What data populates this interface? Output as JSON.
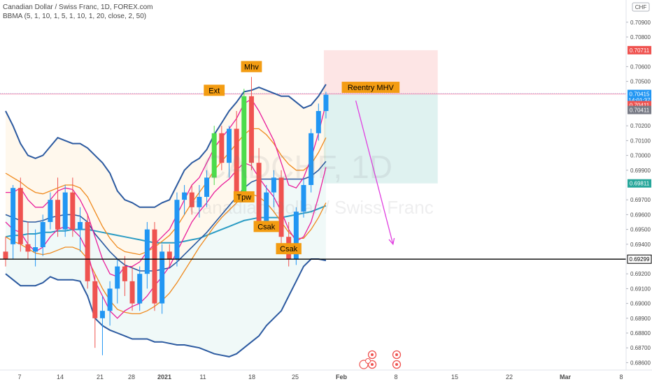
{
  "header": {
    "title": "Canadian Dollar / Swiss Franc, 1D, FOREX.com",
    "indicator": "BBMA (5, 1, 10, 1, 5, 1, 10, 1, 20, close, 2, 50)"
  },
  "watermark": {
    "symbol": "CADCHF, 1D",
    "name": "Canadian Dollar / Swiss Franc"
  },
  "currency_badge": "CHF",
  "colors": {
    "up": "#2196f3",
    "down": "#ef5350",
    "extreme": "#4cdc4c",
    "bb_outer": "#2c5aa0",
    "ma5": "#e91e9b",
    "ma10": "#ef8a1e",
    "ma20": "#2b9cc4",
    "label_bg": "#f39c12",
    "arrow": "#e040e0",
    "price_current": "#2196f3",
    "price_red": "#ef5350",
    "price_gray": "#787b86",
    "price_teal": "#26a69a"
  },
  "chart_data": {
    "type": "candlestick",
    "x_labels": [
      "7",
      "14",
      "21",
      "28",
      "2021",
      "11",
      "18",
      "25",
      "Feb",
      "8",
      "15",
      "22",
      "Mar",
      "8"
    ],
    "y_ticks": [
      "0.70900",
      "0.70800",
      "0.70600",
      "0.70500",
      "0.70200",
      "0.70100",
      "0.70000",
      "0.69900",
      "0.69700",
      "0.69600",
      "0.69500",
      "0.69400",
      "0.69200",
      "0.69100",
      "0.69000",
      "0.68900",
      "0.68800",
      "0.68700",
      "0.68600"
    ],
    "ylim": [
      0.6855,
      0.7105
    ],
    "candles": [
      {
        "o": 0.6935,
        "h": 0.6945,
        "l": 0.6925,
        "c": 0.693
      },
      {
        "o": 0.694,
        "h": 0.698,
        "l": 0.693,
        "c": 0.6978
      },
      {
        "o": 0.6978,
        "h": 0.6985,
        "l": 0.6935,
        "c": 0.694
      },
      {
        "o": 0.694,
        "h": 0.6955,
        "l": 0.693,
        "c": 0.6935
      },
      {
        "o": 0.6935,
        "h": 0.695,
        "l": 0.6925,
        "c": 0.6938
      },
      {
        "o": 0.6938,
        "h": 0.696,
        "l": 0.6932,
        "c": 0.6955
      },
      {
        "o": 0.6955,
        "h": 0.6975,
        "l": 0.695,
        "c": 0.697
      },
      {
        "o": 0.697,
        "h": 0.6985,
        "l": 0.6945,
        "c": 0.695
      },
      {
        "o": 0.695,
        "h": 0.698,
        "l": 0.6945,
        "c": 0.6975
      },
      {
        "o": 0.6975,
        "h": 0.6985,
        "l": 0.6945,
        "c": 0.695
      },
      {
        "o": 0.695,
        "h": 0.6965,
        "l": 0.6935,
        "c": 0.6955
      },
      {
        "o": 0.6955,
        "h": 0.696,
        "l": 0.691,
        "c": 0.6915
      },
      {
        "o": 0.6915,
        "h": 0.692,
        "l": 0.687,
        "c": 0.689
      },
      {
        "o": 0.689,
        "h": 0.6905,
        "l": 0.6865,
        "c": 0.6895
      },
      {
        "o": 0.6895,
        "h": 0.6915,
        "l": 0.6885,
        "c": 0.691
      },
      {
        "o": 0.691,
        "h": 0.693,
        "l": 0.69,
        "c": 0.6925
      },
      {
        "o": 0.6925,
        "h": 0.6932,
        "l": 0.6905,
        "c": 0.6915
      },
      {
        "o": 0.6915,
        "h": 0.6925,
        "l": 0.6895,
        "c": 0.69
      },
      {
        "o": 0.69,
        "h": 0.6925,
        "l": 0.6895,
        "c": 0.692
      },
      {
        "o": 0.692,
        "h": 0.6955,
        "l": 0.691,
        "c": 0.695
      },
      {
        "o": 0.695,
        "h": 0.6955,
        "l": 0.6895,
        "c": 0.69
      },
      {
        "o": 0.69,
        "h": 0.694,
        "l": 0.6893,
        "c": 0.6935
      },
      {
        "o": 0.6935,
        "h": 0.694,
        "l": 0.6925,
        "c": 0.693
      },
      {
        "o": 0.693,
        "h": 0.6975,
        "l": 0.6925,
        "c": 0.697
      },
      {
        "o": 0.697,
        "h": 0.698,
        "l": 0.696,
        "c": 0.6975
      },
      {
        "o": 0.6975,
        "h": 0.698,
        "l": 0.696,
        "c": 0.6965
      },
      {
        "o": 0.6965,
        "h": 0.698,
        "l": 0.6958,
        "c": 0.6972
      },
      {
        "o": 0.6972,
        "h": 0.699,
        "l": 0.6965,
        "c": 0.6985
      },
      {
        "o": 0.6985,
        "h": 0.702,
        "l": 0.698,
        "c": 0.7015,
        "ext": true
      },
      {
        "o": 0.7015,
        "h": 0.702,
        "l": 0.699,
        "c": 0.6995
      },
      {
        "o": 0.6995,
        "h": 0.702,
        "l": 0.6985,
        "c": 0.7018
      },
      {
        "o": 0.7018,
        "h": 0.703,
        "l": 0.697,
        "c": 0.6975
      },
      {
        "o": 0.6975,
        "h": 0.7045,
        "l": 0.697,
        "c": 0.704,
        "ext": true
      },
      {
        "o": 0.704,
        "h": 0.7053,
        "l": 0.699,
        "c": 0.6995
      },
      {
        "o": 0.6995,
        "h": 0.7005,
        "l": 0.695,
        "c": 0.6955
      },
      {
        "o": 0.6955,
        "h": 0.698,
        "l": 0.6952,
        "c": 0.6975
      },
      {
        "o": 0.6975,
        "h": 0.699,
        "l": 0.6965,
        "c": 0.6985
      },
      {
        "o": 0.6985,
        "h": 0.699,
        "l": 0.694,
        "c": 0.6945
      },
      {
        "o": 0.6945,
        "h": 0.6955,
        "l": 0.6925,
        "c": 0.693
      },
      {
        "o": 0.693,
        "h": 0.6965,
        "l": 0.6926,
        "c": 0.6962
      },
      {
        "o": 0.6962,
        "h": 0.6985,
        "l": 0.6958,
        "c": 0.698
      },
      {
        "o": 0.698,
        "h": 0.7018,
        "l": 0.6975,
        "c": 0.7015
      },
      {
        "o": 0.7015,
        "h": 0.7035,
        "l": 0.701,
        "c": 0.703
      },
      {
        "o": 0.703,
        "h": 0.7043,
        "l": 0.7025,
        "c": 0.7041
      }
    ],
    "bands": {
      "bb_upper": [
        0.703,
        0.702,
        0.7008,
        0.7,
        0.6998,
        0.7,
        0.7006,
        0.7012,
        0.701,
        0.7008,
        0.7008,
        0.7005,
        0.7,
        0.6995,
        0.6988,
        0.6976,
        0.697,
        0.6968,
        0.6965,
        0.6965,
        0.6965,
        0.6968,
        0.697,
        0.698,
        0.699,
        0.6995,
        0.6998,
        0.7004,
        0.7014,
        0.7022,
        0.703,
        0.7036,
        0.7043,
        0.7044,
        0.7046,
        0.7044,
        0.7042,
        0.704,
        0.704,
        0.7036,
        0.7032,
        0.7034,
        0.704,
        0.7048
      ],
      "bb_lower": [
        0.692,
        0.6916,
        0.6912,
        0.6912,
        0.6912,
        0.6914,
        0.6918,
        0.6916,
        0.6916,
        0.6916,
        0.6915,
        0.6905,
        0.689,
        0.6885,
        0.6882,
        0.688,
        0.6878,
        0.6876,
        0.6876,
        0.6876,
        0.6874,
        0.6874,
        0.6873,
        0.6872,
        0.6872,
        0.6871,
        0.687,
        0.6868,
        0.6866,
        0.6865,
        0.6864,
        0.6866,
        0.687,
        0.6874,
        0.6878,
        0.6885,
        0.689,
        0.6895,
        0.6905,
        0.6915,
        0.6925,
        0.693,
        0.693,
        0.6929
      ],
      "ma5_high": [
        0.6975,
        0.6975,
        0.6978,
        0.697,
        0.6965,
        0.6965,
        0.697,
        0.6976,
        0.6978,
        0.6977,
        0.697,
        0.696,
        0.6945,
        0.693,
        0.692,
        0.6918,
        0.6925,
        0.6925,
        0.6928,
        0.6935,
        0.694,
        0.6945,
        0.695,
        0.696,
        0.697,
        0.698,
        0.6985,
        0.6995,
        0.7005,
        0.7012,
        0.7018,
        0.7025,
        0.7035,
        0.7038,
        0.703,
        0.702,
        0.701,
        0.6995,
        0.698,
        0.6978,
        0.6985,
        0.6998,
        0.7015,
        0.7035
      ],
      "ma5_low": [
        0.6955,
        0.695,
        0.6948,
        0.694,
        0.6935,
        0.6938,
        0.6945,
        0.695,
        0.6952,
        0.695,
        0.6945,
        0.6935,
        0.6915,
        0.6905,
        0.6895,
        0.689,
        0.6895,
        0.6898,
        0.69,
        0.6905,
        0.6912,
        0.6918,
        0.6925,
        0.6935,
        0.6945,
        0.6955,
        0.6962,
        0.6968,
        0.6975,
        0.698,
        0.6984,
        0.699,
        0.6995,
        0.6993,
        0.6985,
        0.6978,
        0.6972,
        0.6962,
        0.695,
        0.6942,
        0.6945,
        0.6955,
        0.6972,
        0.6992
      ],
      "ma10_high": [
        0.6988,
        0.6985,
        0.6982,
        0.6978,
        0.6975,
        0.6974,
        0.6976,
        0.6978,
        0.698,
        0.698,
        0.6978,
        0.6972,
        0.6962,
        0.6952,
        0.6944,
        0.6938,
        0.6935,
        0.6934,
        0.6933,
        0.6935,
        0.6938,
        0.6942,
        0.6946,
        0.6952,
        0.696,
        0.6968,
        0.6975,
        0.6982,
        0.699,
        0.6996,
        0.7002,
        0.7008,
        0.7014,
        0.7018,
        0.7018,
        0.7014,
        0.7008,
        0.7,
        0.6994,
        0.699,
        0.699,
        0.6994,
        0.7002,
        0.7012
      ],
      "ma10_low": [
        0.6945,
        0.6942,
        0.694,
        0.6937,
        0.6934,
        0.6933,
        0.6934,
        0.6936,
        0.6938,
        0.6938,
        0.6936,
        0.693,
        0.692,
        0.691,
        0.6902,
        0.6896,
        0.6894,
        0.6893,
        0.6893,
        0.6895,
        0.6898,
        0.6902,
        0.6907,
        0.6914,
        0.6922,
        0.693,
        0.6938,
        0.6945,
        0.6952,
        0.6958,
        0.6963,
        0.6968,
        0.6972,
        0.6974,
        0.6972,
        0.6968,
        0.6962,
        0.6955,
        0.6948,
        0.6944,
        0.6944,
        0.695,
        0.6958,
        0.6968
      ],
      "bb_mid": [
        0.696,
        0.6958,
        0.6956,
        0.6955,
        0.6955,
        0.6956,
        0.6958,
        0.6959,
        0.696,
        0.696,
        0.6959,
        0.6955,
        0.6947,
        0.6941,
        0.6935,
        0.693,
        0.6926,
        0.6924,
        0.6922,
        0.6922,
        0.6922,
        0.6923,
        0.6924,
        0.6928,
        0.6933,
        0.6938,
        0.6943,
        0.6948,
        0.6954,
        0.696,
        0.6966,
        0.6972,
        0.6978,
        0.6982,
        0.6984,
        0.6984,
        0.6984,
        0.6984,
        0.6984,
        0.6984,
        0.6984,
        0.6986,
        0.699,
        0.6996
      ],
      "ma50": [
        0.6945,
        0.6946,
        0.6946,
        0.6947,
        0.6947,
        0.6948,
        0.6948,
        0.6949,
        0.6949,
        0.695,
        0.695,
        0.695,
        0.6949,
        0.6948,
        0.6947,
        0.6946,
        0.6945,
        0.6944,
        0.6943,
        0.6942,
        0.6941,
        0.6941,
        0.6941,
        0.6941,
        0.6942,
        0.6943,
        0.6944,
        0.6946,
        0.6948,
        0.695,
        0.6952,
        0.6954,
        0.6956,
        0.6957,
        0.6958,
        0.6958,
        0.6958,
        0.6958,
        0.6959,
        0.696,
        0.6961,
        0.6962,
        0.6964,
        0.6966
      ]
    },
    "annotations": [
      {
        "text": "Ext",
        "candle": 28,
        "price": 0.7044
      },
      {
        "text": "Mhv",
        "candle": 33,
        "price": 0.706
      },
      {
        "text": "Tpw",
        "candle": 32,
        "price": 0.6972
      },
      {
        "text": "Csak",
        "candle": 35,
        "price": 0.6952
      },
      {
        "text": "Csak",
        "candle": 38,
        "price": 0.6937
      },
      {
        "text": "Reentry MHV",
        "candle": 49,
        "price": 0.7046
      }
    ],
    "levels": [
      {
        "label": "0.70711",
        "price": 0.70711,
        "color": "red"
      },
      {
        "label": "0.70415",
        "price": 0.70415,
        "color": "blue"
      },
      {
        "label": "14:01:37",
        "price": 0.70372,
        "color": "blue"
      },
      {
        "label": "0.70411",
        "price": 0.7034,
        "color": "red"
      },
      {
        "label": "0.70411",
        "price": 0.70307,
        "color": "gray"
      },
      {
        "label": "0.69811",
        "price": 0.69811,
        "color": "teal"
      },
      {
        "label": "0.69299",
        "price": 0.69299,
        "color": "black"
      }
    ],
    "position": {
      "entry": 0.70415,
      "stop": 0.70711,
      "target": 0.69811,
      "start_candle": 43,
      "end_candle": 58
    },
    "arrow": {
      "from_candle": 47,
      "from_price": 0.7037,
      "to_candle": 52,
      "to_price": 0.694
    },
    "horizontal_line": 0.69299
  }
}
